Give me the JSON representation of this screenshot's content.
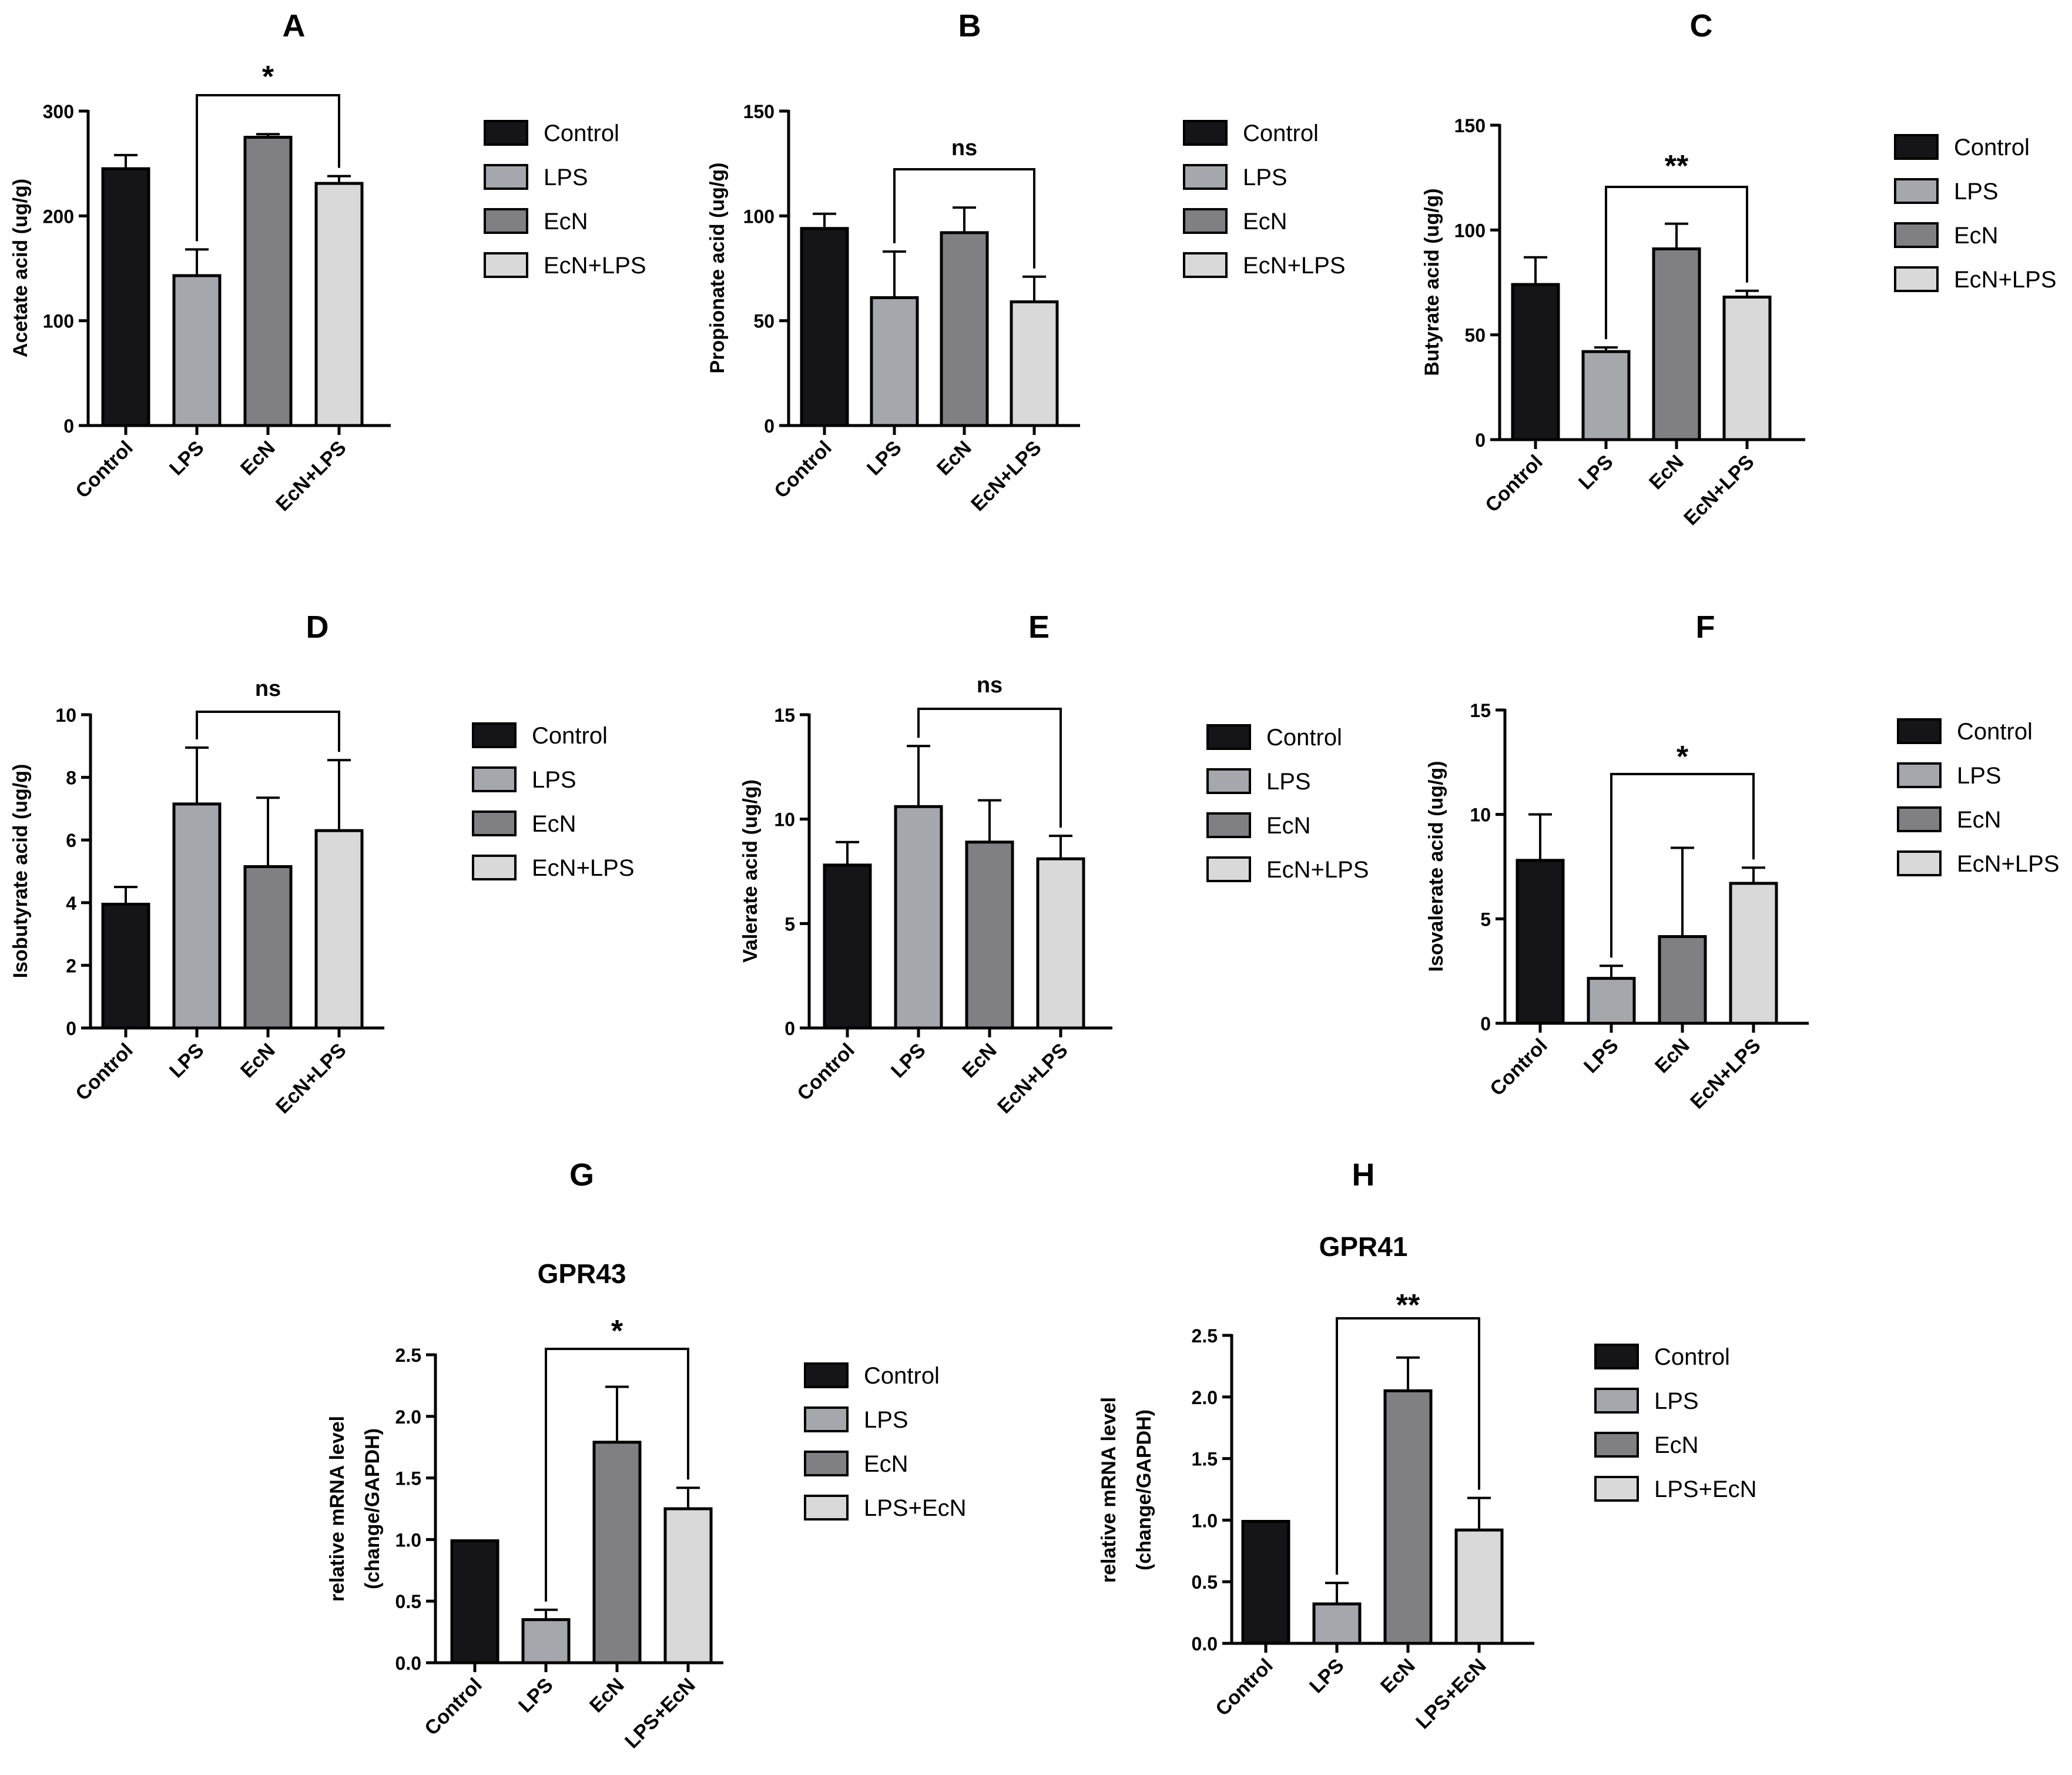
{
  "colors": {
    "Control": "#151517",
    "LPS": "#a6a6ad",
    "EcN": "#808083",
    "EcN+LPS": "#d9d9d9",
    "LPS+EcN": "#d9d9d9"
  },
  "chart_data": [
    {
      "type": "bar",
      "panel": "A",
      "title": "",
      "ylabel": "Acetate acid (ug/g)",
      "ylim": [
        0,
        300
      ],
      "yticks": [
        0,
        100,
        200,
        300
      ],
      "categories": [
        "Control",
        "LPS",
        "EcN",
        "EcN+LPS"
      ],
      "values": [
        245,
        143,
        275,
        231
      ],
      "errors": [
        13,
        25,
        3,
        7
      ],
      "significance": {
        "from": "LPS",
        "to": "EcN+LPS",
        "label": "*"
      },
      "legend": [
        "Control",
        "LPS",
        "EcN",
        "EcN+LPS"
      ]
    },
    {
      "type": "bar",
      "panel": "B",
      "title": "",
      "ylabel": "Propionate acid (ug/g)",
      "ylim": [
        0,
        150
      ],
      "yticks": [
        0,
        50,
        100,
        150
      ],
      "categories": [
        "Control",
        "LPS",
        "EcN",
        "EcN+LPS"
      ],
      "values": [
        94,
        61,
        92,
        59
      ],
      "errors": [
        7,
        22,
        12,
        12
      ],
      "significance": {
        "from": "LPS",
        "to": "EcN+LPS",
        "label": "ns"
      },
      "legend": [
        "Control",
        "LPS",
        "EcN",
        "EcN+LPS"
      ]
    },
    {
      "type": "bar",
      "panel": "C",
      "title": "",
      "ylabel": "Butyrate acid (ug/g)",
      "ylim": [
        0,
        150
      ],
      "yticks": [
        0,
        50,
        100,
        150
      ],
      "categories": [
        "Control",
        "LPS",
        "EcN",
        "EcN+LPS"
      ],
      "values": [
        74,
        42,
        91,
        68
      ],
      "errors": [
        13,
        2,
        12,
        3
      ],
      "significance": {
        "from": "LPS",
        "to": "EcN+LPS",
        "label": "**"
      },
      "legend": [
        "Control",
        "LPS",
        "EcN",
        "EcN+LPS"
      ]
    },
    {
      "type": "bar",
      "panel": "D",
      "title": "",
      "ylabel": "Isobutyrate acid (ug/g)",
      "ylim": [
        0,
        10
      ],
      "yticks": [
        0,
        2,
        4,
        6,
        8,
        10
      ],
      "categories": [
        "Control",
        "LPS",
        "EcN",
        "EcN+LPS"
      ],
      "values": [
        3.95,
        7.15,
        5.15,
        6.3
      ],
      "errors": [
        0.55,
        1.8,
        2.2,
        2.25
      ],
      "significance": {
        "from": "LPS",
        "to": "EcN+LPS",
        "label": "ns"
      },
      "legend": [
        "Control",
        "LPS",
        "EcN",
        "EcN+LPS"
      ]
    },
    {
      "type": "bar",
      "panel": "E",
      "title": "",
      "ylabel": "Valerate acid (ug/g)",
      "ylim": [
        0,
        15
      ],
      "yticks": [
        0,
        5,
        10,
        15
      ],
      "categories": [
        "Control",
        "LPS",
        "EcN",
        "EcN+LPS"
      ],
      "values": [
        7.8,
        10.6,
        8.9,
        8.1
      ],
      "errors": [
        1.1,
        2.9,
        2.0,
        1.1
      ],
      "significance": {
        "from": "LPS",
        "to": "EcN+LPS",
        "label": "ns"
      },
      "legend": [
        "Control",
        "LPS",
        "EcN",
        "EcN+LPS"
      ]
    },
    {
      "type": "bar",
      "panel": "F",
      "title": "",
      "ylabel": "Isovalerate acid (ug/g)",
      "ylim": [
        0,
        15
      ],
      "yticks": [
        0,
        5,
        10,
        15
      ],
      "categories": [
        "Control",
        "LPS",
        "EcN",
        "EcN+LPS"
      ],
      "values": [
        7.8,
        2.15,
        4.15,
        6.7
      ],
      "errors": [
        2.2,
        0.6,
        4.25,
        0.75
      ],
      "significance": {
        "from": "LPS",
        "to": "EcN+LPS",
        "label": "*"
      },
      "legend": [
        "Control",
        "LPS",
        "EcN",
        "EcN+LPS"
      ]
    },
    {
      "type": "bar",
      "panel": "G",
      "title": "GPR43",
      "ylabel": "relative mRNA level (change/GAPDH)",
      "ylabel_lines": [
        "relative mRNA level",
        "(change/GAPDH)"
      ],
      "ylim": [
        0,
        2.5
      ],
      "yticks": [
        0.0,
        0.5,
        1.0,
        1.5,
        2.0,
        2.5
      ],
      "categories": [
        "Control",
        "LPS",
        "EcN",
        "LPS+EcN"
      ],
      "values": [
        0.99,
        0.35,
        1.79,
        1.25
      ],
      "errors": [
        0,
        0.08,
        0.45,
        0.17
      ],
      "significance": {
        "from": "LPS",
        "to": "LPS+EcN",
        "label": "*"
      },
      "legend": [
        "Control",
        "LPS",
        "EcN",
        "LPS+EcN"
      ]
    },
    {
      "type": "bar",
      "panel": "H",
      "title": "GPR41",
      "ylabel": "relative mRNA level (change/GAPDH)",
      "ylabel_lines": [
        "relative mRNA level",
        "(change/GAPDH)"
      ],
      "ylim": [
        0,
        2.5
      ],
      "yticks": [
        0.0,
        0.5,
        1.0,
        1.5,
        2.0,
        2.5
      ],
      "categories": [
        "Control",
        "LPS",
        "EcN",
        "LPS+EcN"
      ],
      "values": [
        0.99,
        0.32,
        2.05,
        0.92
      ],
      "errors": [
        0,
        0.17,
        0.27,
        0.26
      ],
      "significance": {
        "from": "LPS",
        "to": "LPS+EcN",
        "label": "**"
      },
      "legend": [
        "Control",
        "LPS",
        "EcN",
        "LPS+EcN"
      ]
    }
  ]
}
